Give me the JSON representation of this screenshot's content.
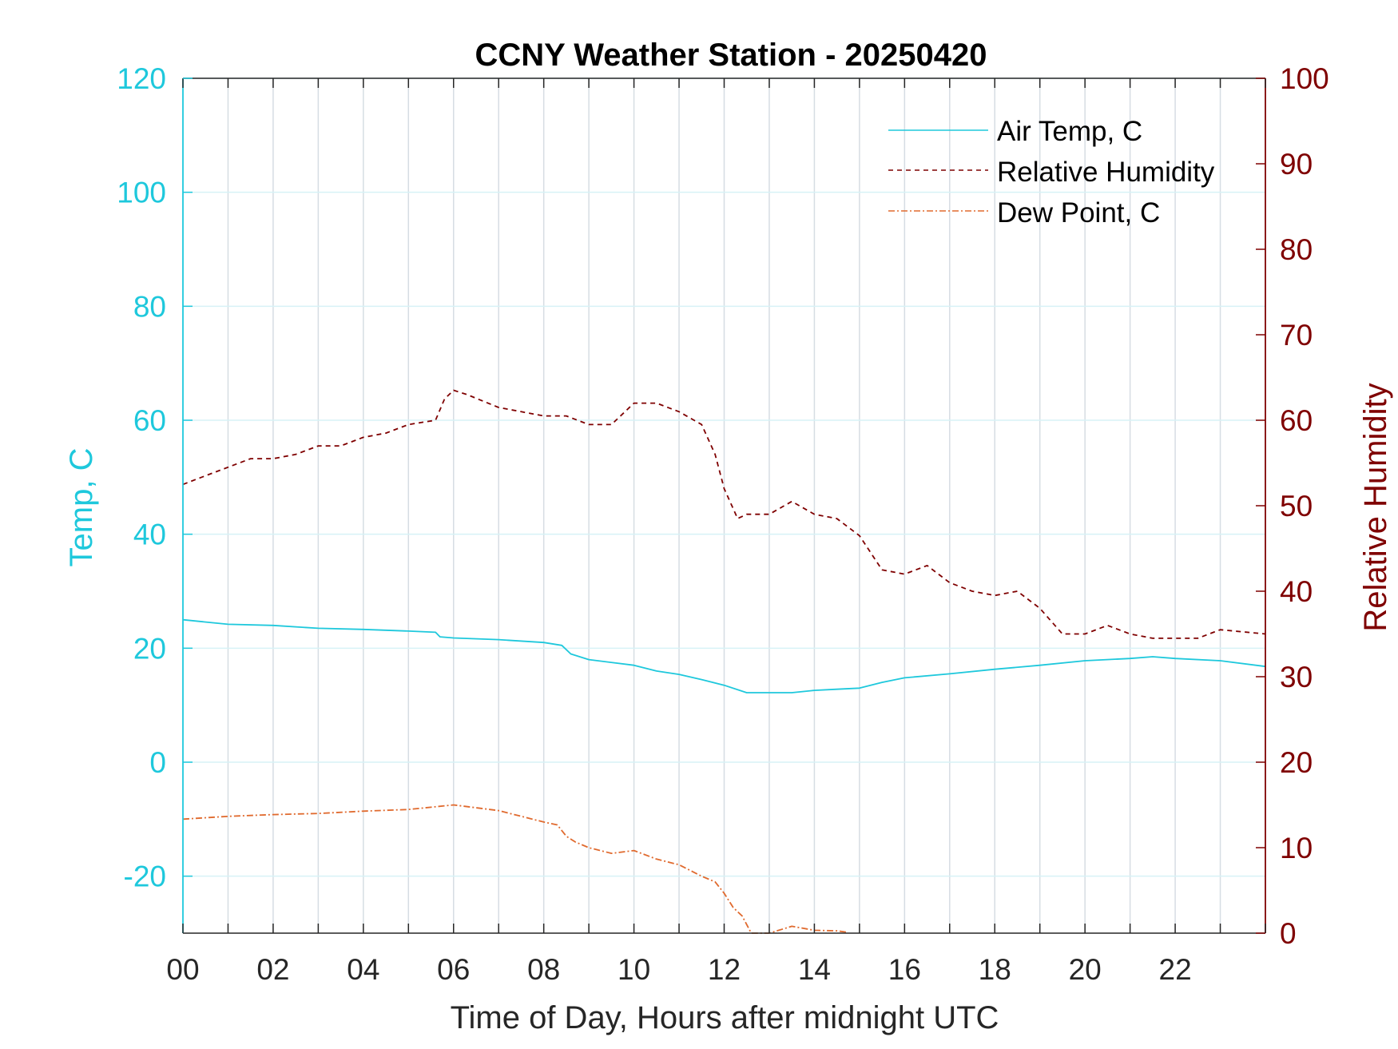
{
  "chart_data": {
    "type": "line",
    "title": "CCNY Weather Station - 20250420",
    "xlabel": "Time of Day, Hours after midnight UTC",
    "ylabel_left": "Temp, C",
    "ylabel_right": "Relative Humidity",
    "xlim": [
      0,
      24
    ],
    "ylim_left": [
      -30,
      120
    ],
    "ylim_right": [
      0,
      100
    ],
    "x_ticks": [
      0,
      2,
      4,
      6,
      8,
      10,
      12,
      14,
      16,
      18,
      20,
      22
    ],
    "x_tick_labels": [
      "00",
      "02",
      "04",
      "06",
      "08",
      "10",
      "12",
      "14",
      "16",
      "18",
      "20",
      "22"
    ],
    "y_left_ticks": [
      -20,
      0,
      20,
      40,
      60,
      80,
      100,
      120
    ],
    "y_left_tick_labels": [
      "-20",
      "0",
      "20",
      "40",
      "60",
      "80",
      "100",
      "120"
    ],
    "y_right_ticks": [
      0,
      10,
      20,
      30,
      40,
      50,
      60,
      70,
      80,
      90,
      100
    ],
    "y_right_tick_labels": [
      "0",
      "10",
      "20",
      "30",
      "40",
      "50",
      "60",
      "70",
      "80",
      "90",
      "100"
    ],
    "grid": true,
    "legend_position": "top-right",
    "colors": {
      "temp": "#1ec8dc",
      "rh": "#7f0000",
      "dew": "#e06a2e",
      "axis_left": "#1ec8dc",
      "axis_right": "#7f0000"
    },
    "series": [
      {
        "name": "Air Temp, C",
        "axis": "left",
        "x": [
          0,
          1,
          2,
          3,
          4,
          5,
          5.6,
          5.7,
          6,
          7,
          8,
          8.4,
          8.6,
          9,
          10,
          10.5,
          11,
          11.5,
          12,
          12.5,
          13,
          13.5,
          14,
          14.5,
          15,
          15.5,
          16,
          17,
          18,
          19,
          20,
          21,
          21.5,
          22,
          23,
          24
        ],
        "y": [
          25,
          24.2,
          24,
          23.5,
          23.3,
          23,
          22.8,
          22,
          21.8,
          21.5,
          21,
          20.5,
          19,
          18,
          17,
          16,
          15.4,
          14.5,
          13.5,
          12.2,
          12.2,
          12.2,
          12.6,
          12.8,
          13,
          14,
          14.8,
          15.5,
          16.3,
          17,
          17.8,
          18.2,
          18.5,
          18.2,
          17.8,
          16.8
        ]
      },
      {
        "name": "Relative Humidity",
        "axis": "right",
        "x": [
          0,
          0.5,
          1,
          1.5,
          2,
          2.5,
          3,
          3.5,
          4,
          4.5,
          5,
          5.6,
          5.8,
          6,
          6.3,
          7,
          7.5,
          8,
          8.5,
          9,
          9.5,
          10,
          10.5,
          11,
          11.5,
          11.8,
          12,
          12.3,
          12.5,
          13,
          13.5,
          14,
          14.5,
          15,
          15.5,
          16,
          16.5,
          17,
          17.5,
          18,
          18.5,
          19,
          19.5,
          20,
          20.5,
          21,
          21.5,
          22,
          22.5,
          23,
          24
        ],
        "y": [
          52.5,
          53.5,
          54.5,
          55.5,
          55.5,
          56,
          57,
          57,
          58,
          58.5,
          59.5,
          60,
          62.5,
          63.5,
          63,
          61.5,
          61,
          60.5,
          60.5,
          59.5,
          59.5,
          62,
          62,
          61,
          59.5,
          56,
          52,
          48.5,
          49,
          49,
          50.5,
          49,
          48.5,
          46.5,
          42.5,
          42,
          43,
          41,
          40,
          39.5,
          40,
          38,
          35,
          35,
          36,
          35,
          34.5,
          34.5,
          34.5,
          35.5,
          35
        ]
      },
      {
        "name": "Dew Point, C",
        "axis": "left",
        "x": [
          0,
          1,
          2,
          3,
          4,
          5,
          6,
          7,
          8,
          8.3,
          8.5,
          8.7,
          9,
          9.5,
          10,
          10.5,
          11,
          11.5,
          11.8,
          12,
          12.2,
          12.4,
          12.6,
          13,
          13.5,
          14,
          14.5,
          14.7
        ],
        "y": [
          -10,
          -9.5,
          -9.2,
          -9,
          -8.6,
          -8.3,
          -7.5,
          -8.5,
          -10.5,
          -11,
          -13,
          -14,
          -15,
          -16,
          -15.5,
          -17,
          -18,
          -20,
          -21,
          -23,
          -25.5,
          -27,
          -30,
          -30,
          -28.8,
          -29.5,
          -29.6,
          -29.8
        ]
      }
    ]
  }
}
